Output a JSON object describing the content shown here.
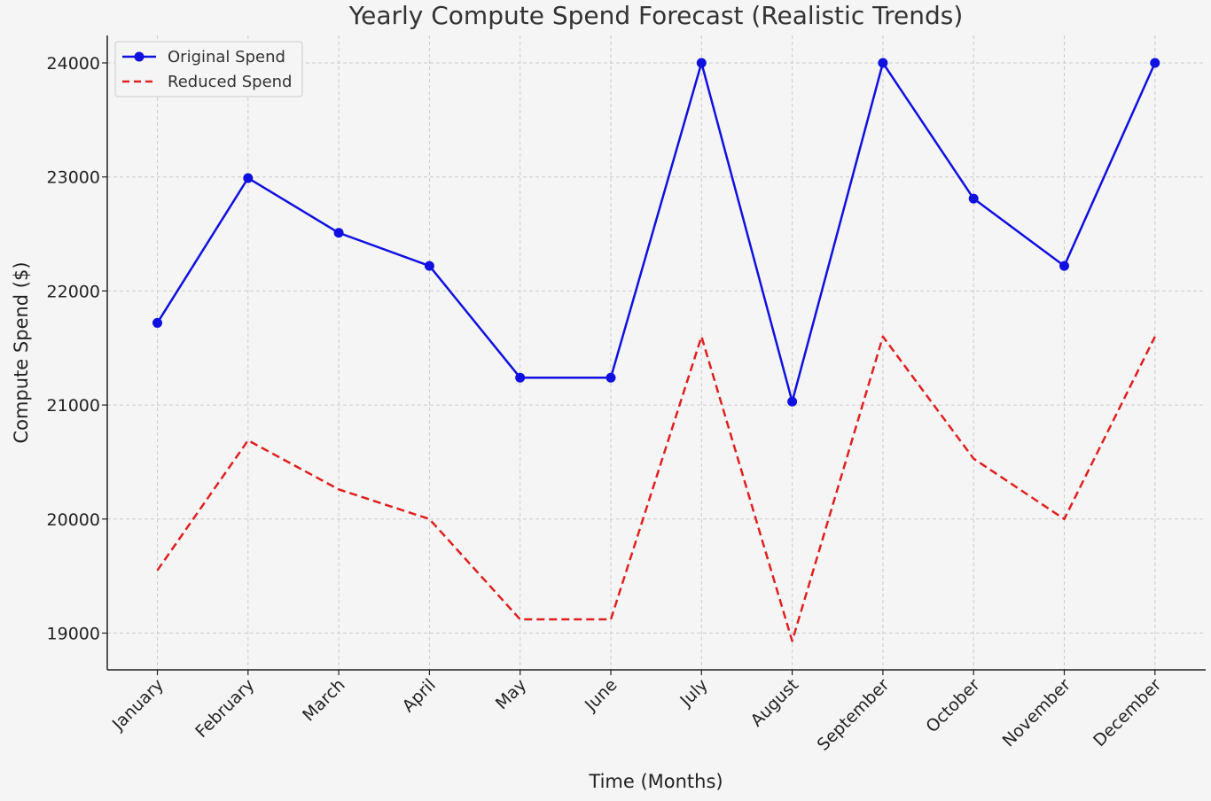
{
  "chart_data": {
    "type": "line",
    "title": "Yearly Compute Spend Forecast (Realistic Trends)",
    "xlabel": "Time (Months)",
    "ylabel": "Compute Spend ($)",
    "categories": [
      "January",
      "February",
      "March",
      "April",
      "May",
      "June",
      "July",
      "August",
      "September",
      "October",
      "November",
      "December"
    ],
    "ylim": [
      18680,
      24250
    ],
    "yticks": [
      19000,
      20000,
      21000,
      22000,
      23000,
      24000
    ],
    "grid": true,
    "legend_position": "top-left",
    "series": [
      {
        "name": "Original Spend",
        "color": "#1010e0",
        "style": "solid",
        "marker": "circle",
        "values": [
          21720,
          22990,
          22510,
          22220,
          21240,
          21240,
          24000,
          21030,
          24000,
          22810,
          22220,
          24000
        ]
      },
      {
        "name": "Reduced Spend",
        "color": "#e02020",
        "style": "dashed",
        "marker": "none",
        "values": [
          19550,
          20690,
          20260,
          20000,
          19120,
          19120,
          21600,
          18930,
          21600,
          20530,
          20000,
          21600
        ]
      }
    ]
  }
}
